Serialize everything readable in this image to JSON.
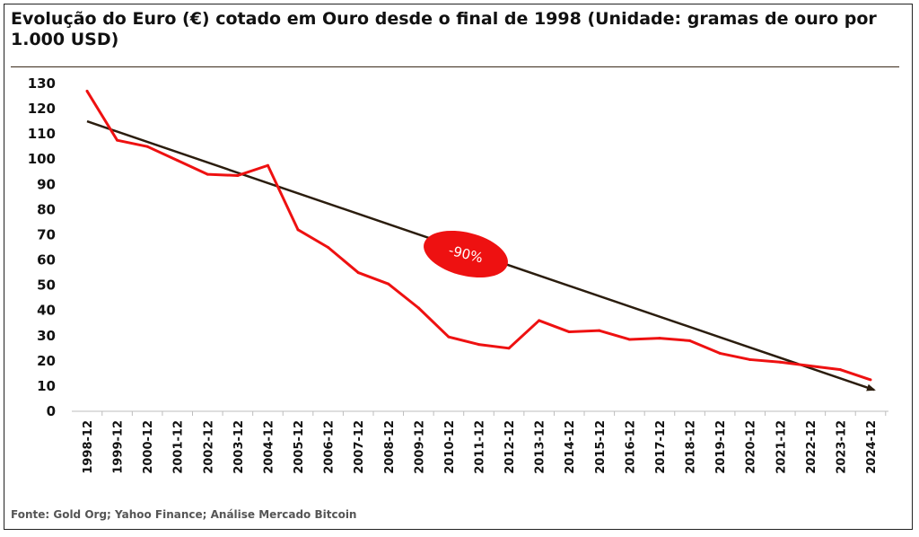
{
  "title": "Evolução do Euro (€) cotado em Ouro desde o final de 1998 (Unidade: gramas de ouro por 1.000 USD)",
  "source": "Fonte: Gold Org; Yahoo Finance; Análise Mercado Bitcoin",
  "colors": {
    "series": "#ee1111",
    "trend": "#2b1d0e",
    "badge": "#ee1111"
  },
  "chart_data": {
    "type": "line",
    "categories": [
      "1998-12",
      "1999-12",
      "2000-12",
      "2001-12",
      "2002-12",
      "2003-12",
      "2004-12",
      "2005-12",
      "2006-12",
      "2007-12",
      "2008-12",
      "2009-12",
      "2010-12",
      "2011-12",
      "2012-12",
      "2013-12",
      "2014-12",
      "2015-12",
      "2016-12",
      "2017-12",
      "2018-12",
      "2019-12",
      "2020-12",
      "2021-12",
      "2022-12",
      "2023-12",
      "2024-12"
    ],
    "series": [
      {
        "values": [
          127,
          107.5,
          105,
          99.5,
          94,
          93.5,
          97.5,
          72,
          65,
          55,
          50.5,
          41,
          29.5,
          26.5,
          25,
          36,
          31.5,
          32,
          28.5,
          29,
          28,
          23,
          20.5,
          19.5,
          18,
          16.5,
          12.5
        ]
      }
    ],
    "trendline": {
      "start": 115,
      "end": 8.5
    },
    "annotation": "-90%",
    "ylim": [
      0,
      130
    ],
    "yticks": [
      0,
      10,
      20,
      30,
      40,
      50,
      60,
      70,
      80,
      90,
      100,
      110,
      120,
      130
    ],
    "grid": false,
    "legend": "none",
    "xlabel": "",
    "ylabel": ""
  }
}
